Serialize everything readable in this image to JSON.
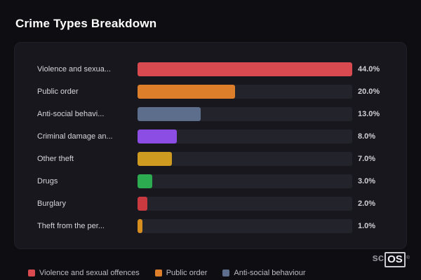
{
  "page_title": "Crime Types Breakdown",
  "chart_data": {
    "type": "bar",
    "orientation": "horizontal",
    "title": "Crime Types Breakdown",
    "xlim": [
      0,
      44
    ],
    "grid": false,
    "legend_position": "bottom-left",
    "categories": [
      "Violence and sexua...",
      "Public order",
      "Anti-social behavi...",
      "Criminal damage an...",
      "Other theft",
      "Drugs",
      "Burglary",
      "Theft from the per..."
    ],
    "values": [
      44.0,
      20.0,
      13.0,
      8.0,
      7.0,
      3.0,
      2.0,
      1.0
    ],
    "value_labels": [
      "44.0%",
      "20.0%",
      "13.0%",
      "8.0%",
      "7.0%",
      "3.0%",
      "2.0%",
      "1.0%"
    ],
    "colors": [
      "#d84a50",
      "#dd7e2b",
      "#5d6e8c",
      "#8b4de4",
      "#cf9a20",
      "#2cab50",
      "#c93a40",
      "#d68e1e"
    ],
    "legend": [
      {
        "label": "Violence and sexual offences",
        "color": "#d84a50"
      },
      {
        "label": "Public order",
        "color": "#dd7e2b"
      },
      {
        "label": "Anti-social behaviour",
        "color": "#5d6e8c"
      }
    ]
  },
  "branding": {
    "prefix": "sc",
    "box": "OS",
    "reg": "®"
  }
}
